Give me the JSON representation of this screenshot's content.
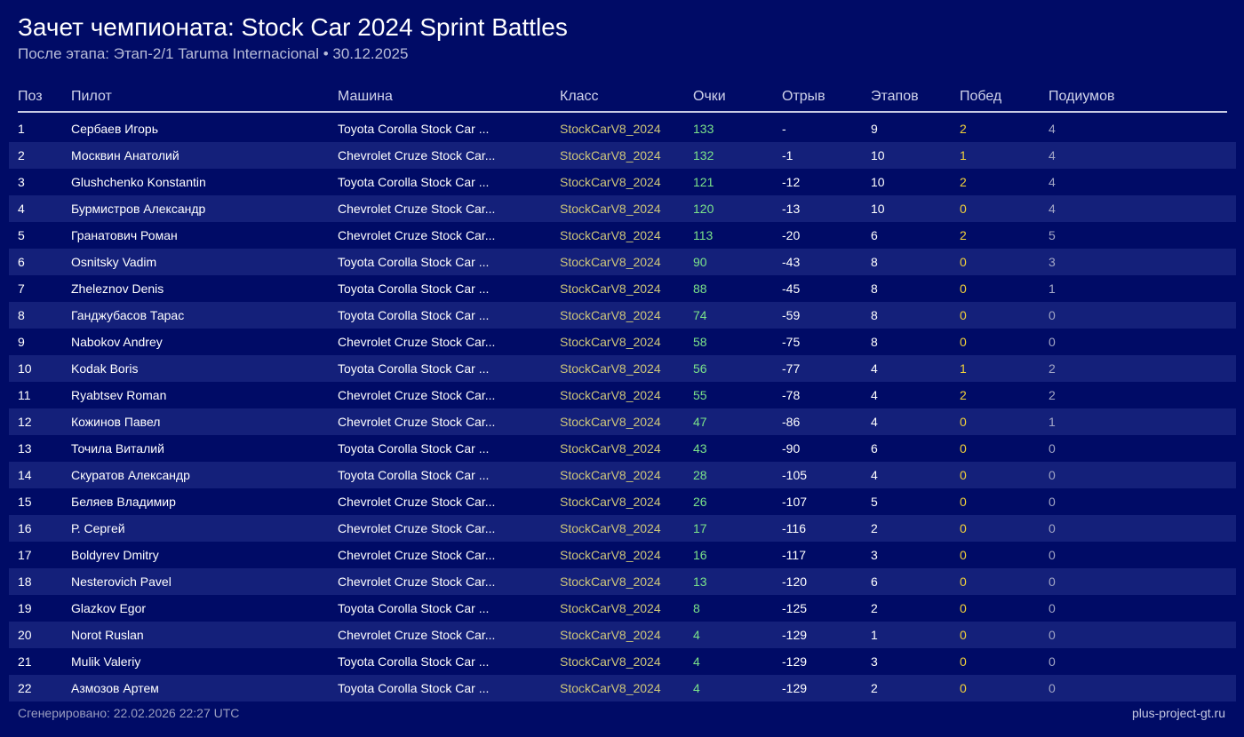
{
  "page": {
    "title": "Зачет чемпионата: Stock Car 2024 Sprint Battles",
    "subtitle": "После этапа: Этап-2/1 Taruma Internacional • 30.12.2025"
  },
  "table": {
    "columns": {
      "pos": "Поз",
      "pilot": "Пилот",
      "car": "Машина",
      "class": "Класс",
      "points": "Очки",
      "gap": "Отрыв",
      "stages": "Этапов",
      "wins": "Побед",
      "podiums": "Подиумов"
    },
    "rows": [
      {
        "pos": "1",
        "pilot": "Сербаев Игорь",
        "car": "Toyota Corolla Stock Car ...",
        "class": "StockCarV8_2024",
        "points": "133",
        "gap": "-",
        "stages": "9",
        "wins": "2",
        "podiums": "4"
      },
      {
        "pos": "2",
        "pilot": "Москвин Анатолий",
        "car": "Chevrolet Cruze Stock Car...",
        "class": "StockCarV8_2024",
        "points": "132",
        "gap": "-1",
        "stages": "10",
        "wins": "1",
        "podiums": "4"
      },
      {
        "pos": "3",
        "pilot": "Glushchenko Konstantin",
        "car": "Toyota Corolla Stock Car ...",
        "class": "StockCarV8_2024",
        "points": "121",
        "gap": "-12",
        "stages": "10",
        "wins": "2",
        "podiums": "4"
      },
      {
        "pos": "4",
        "pilot": "Бурмистров Александр",
        "car": "Chevrolet Cruze Stock Car...",
        "class": "StockCarV8_2024",
        "points": "120",
        "gap": "-13",
        "stages": "10",
        "wins": "0",
        "podiums": "4"
      },
      {
        "pos": "5",
        "pilot": "Гранатович Роман",
        "car": "Chevrolet Cruze Stock Car...",
        "class": "StockCarV8_2024",
        "points": "113",
        "gap": "-20",
        "stages": "6",
        "wins": "2",
        "podiums": "5"
      },
      {
        "pos": "6",
        "pilot": "Osnitsky Vadim",
        "car": "Toyota Corolla Stock Car ...",
        "class": "StockCarV8_2024",
        "points": "90",
        "gap": "-43",
        "stages": "8",
        "wins": "0",
        "podiums": "3"
      },
      {
        "pos": "7",
        "pilot": "Zheleznov Denis",
        "car": "Toyota Corolla Stock Car ...",
        "class": "StockCarV8_2024",
        "points": "88",
        "gap": "-45",
        "stages": "8",
        "wins": "0",
        "podiums": "1"
      },
      {
        "pos": "8",
        "pilot": "Ганджубасов Тарас",
        "car": "Toyota Corolla Stock Car ...",
        "class": "StockCarV8_2024",
        "points": "74",
        "gap": "-59",
        "stages": "8",
        "wins": "0",
        "podiums": "0"
      },
      {
        "pos": "9",
        "pilot": "Nabokov Andrey",
        "car": "Chevrolet Cruze Stock Car...",
        "class": "StockCarV8_2024",
        "points": "58",
        "gap": "-75",
        "stages": "8",
        "wins": "0",
        "podiums": "0"
      },
      {
        "pos": "10",
        "pilot": "Kodak Boris",
        "car": "Toyota Corolla Stock Car ...",
        "class": "StockCarV8_2024",
        "points": "56",
        "gap": "-77",
        "stages": "4",
        "wins": "1",
        "podiums": "2"
      },
      {
        "pos": "11",
        "pilot": "Ryabtsev Roman",
        "car": "Chevrolet Cruze Stock Car...",
        "class": "StockCarV8_2024",
        "points": "55",
        "gap": "-78",
        "stages": "4",
        "wins": "2",
        "podiums": "2"
      },
      {
        "pos": "12",
        "pilot": "Кожинов Павел",
        "car": "Chevrolet Cruze Stock Car...",
        "class": "StockCarV8_2024",
        "points": "47",
        "gap": "-86",
        "stages": "4",
        "wins": "0",
        "podiums": "1"
      },
      {
        "pos": "13",
        "pilot": "Точила Виталий",
        "car": "Toyota Corolla Stock Car ...",
        "class": "StockCarV8_2024",
        "points": "43",
        "gap": "-90",
        "stages": "6",
        "wins": "0",
        "podiums": "0"
      },
      {
        "pos": "14",
        "pilot": "Скуратов Александр",
        "car": "Toyota Corolla Stock Car ...",
        "class": "StockCarV8_2024",
        "points": "28",
        "gap": "-105",
        "stages": "4",
        "wins": "0",
        "podiums": "0"
      },
      {
        "pos": "15",
        "pilot": "Беляев Владимир",
        "car": "Chevrolet Cruze Stock Car...",
        "class": "StockCarV8_2024",
        "points": "26",
        "gap": "-107",
        "stages": "5",
        "wins": "0",
        "podiums": "0"
      },
      {
        "pos": "16",
        "pilot": "Р. Сергей",
        "car": "Chevrolet Cruze Stock Car...",
        "class": "StockCarV8_2024",
        "points": "17",
        "gap": "-116",
        "stages": "2",
        "wins": "0",
        "podiums": "0"
      },
      {
        "pos": "17",
        "pilot": "Boldyrev Dmitry",
        "car": "Chevrolet Cruze Stock Car...",
        "class": "StockCarV8_2024",
        "points": "16",
        "gap": "-117",
        "stages": "3",
        "wins": "0",
        "podiums": "0"
      },
      {
        "pos": "18",
        "pilot": "Nesterovich Pavel",
        "car": "Chevrolet Cruze Stock Car...",
        "class": "StockCarV8_2024",
        "points": "13",
        "gap": "-120",
        "stages": "6",
        "wins": "0",
        "podiums": "0"
      },
      {
        "pos": "19",
        "pilot": "Glazkov Egor",
        "car": "Toyota Corolla Stock Car ...",
        "class": "StockCarV8_2024",
        "points": "8",
        "gap": "-125",
        "stages": "2",
        "wins": "0",
        "podiums": "0"
      },
      {
        "pos": "20",
        "pilot": "Norot Ruslan",
        "car": "Chevrolet Cruze Stock Car...",
        "class": "StockCarV8_2024",
        "points": "4",
        "gap": "-129",
        "stages": "1",
        "wins": "0",
        "podiums": "0"
      },
      {
        "pos": "21",
        "pilot": "Mulik Valeriy",
        "car": "Toyota Corolla Stock Car ...",
        "class": "StockCarV8_2024",
        "points": "4",
        "gap": "-129",
        "stages": "3",
        "wins": "0",
        "podiums": "0"
      },
      {
        "pos": "22",
        "pilot": "Азмозов Артем",
        "car": "Toyota Corolla Stock Car ...",
        "class": "StockCarV8_2024",
        "points": "4",
        "gap": "-129",
        "stages": "2",
        "wins": "0",
        "podiums": "0"
      }
    ]
  },
  "footer": {
    "generated": "Сгенерировано: 22.02.2026 22:27 UTC",
    "site": "plus-project-gt.ru"
  },
  "colors": {
    "background": "#000b66",
    "row_alt": "#14207a",
    "class_text": "#cfc77a",
    "points_text": "#7be38a",
    "wins_text": "#f3d23a",
    "podiums_text": "#a3a7c6"
  }
}
